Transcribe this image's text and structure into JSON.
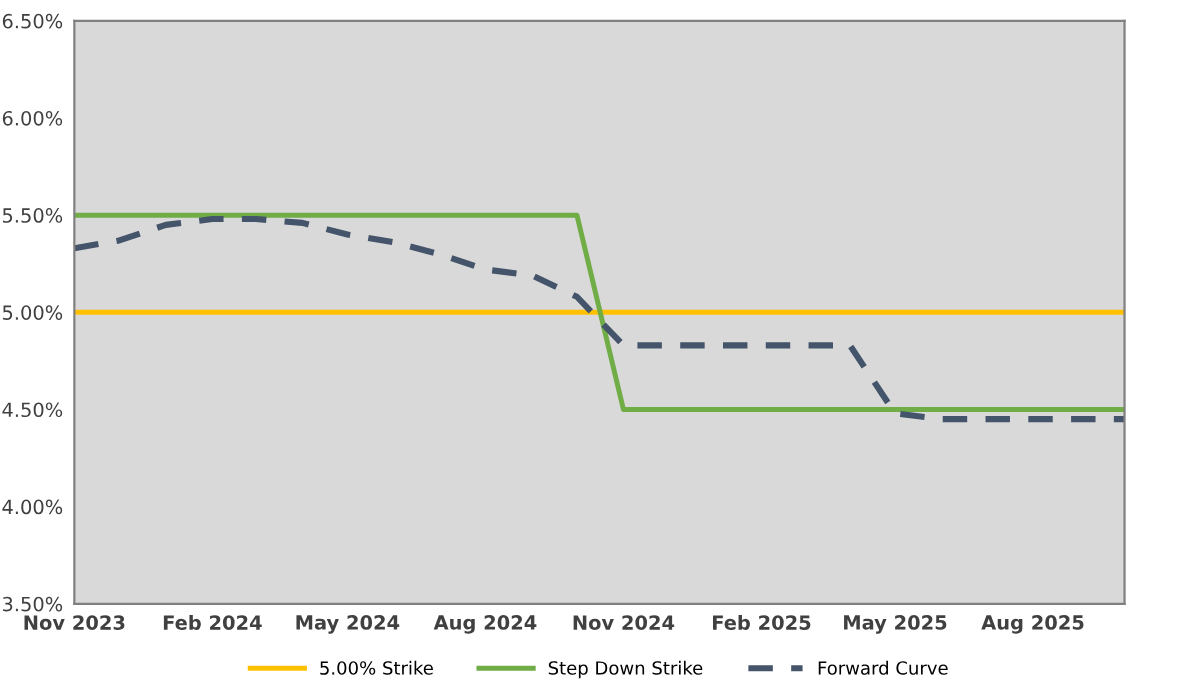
{
  "chart_data": {
    "type": "line",
    "series": [
      {
        "name": "5.00% Strike",
        "color": "#ffc000",
        "line_style": "solid",
        "x": [
          "2023-11",
          "2025-10"
        ],
        "values": [
          5.0,
          5.0
        ]
      },
      {
        "name": "Step Down Strike",
        "color": "#70ad47",
        "line_style": "solid",
        "x": [
          "2023-11",
          "2024-10",
          "2024-11",
          "2025-10"
        ],
        "values": [
          5.5,
          5.5,
          4.5,
          4.5
        ]
      },
      {
        "name": "Forward Curve",
        "color": "#44546a",
        "line_style": "dashed",
        "x": [
          "2023-11",
          "2023-12",
          "2024-01",
          "2024-02",
          "2024-03",
          "2024-04",
          "2024-05",
          "2024-06",
          "2024-07",
          "2024-08",
          "2024-09",
          "2024-10",
          "2024-11",
          "2025-04",
          "2025-05",
          "2025-06",
          "2025-10"
        ],
        "values": [
          5.33,
          5.37,
          5.45,
          5.48,
          5.48,
          5.46,
          5.4,
          5.36,
          5.3,
          5.22,
          5.19,
          5.08,
          4.83,
          4.83,
          4.48,
          4.45,
          4.45
        ]
      }
    ],
    "xlim": [
      "2023-11",
      "2025-10"
    ],
    "xticks": [
      {
        "value": "2023-11",
        "label": "Nov 2023"
      },
      {
        "value": "2024-02",
        "label": "Feb 2024"
      },
      {
        "value": "2024-05",
        "label": "May 2024"
      },
      {
        "value": "2024-08",
        "label": "Aug 2024"
      },
      {
        "value": "2024-11",
        "label": "Nov 2024"
      },
      {
        "value": "2025-02",
        "label": "Feb 2025"
      },
      {
        "value": "2025-05",
        "label": "May 2025"
      },
      {
        "value": "2025-08",
        "label": "Aug 2025"
      }
    ],
    "ylim": [
      3.5,
      6.5
    ],
    "yticks": [
      {
        "value": 3.5,
        "label": "3.50%"
      },
      {
        "value": 4.0,
        "label": "4.00%"
      },
      {
        "value": 4.5,
        "label": "4.50%"
      },
      {
        "value": 5.0,
        "label": "5.00%"
      },
      {
        "value": 5.5,
        "label": "5.50%"
      },
      {
        "value": 6.0,
        "label": "6.00%"
      },
      {
        "value": 6.5,
        "label": "6.50%"
      }
    ],
    "grid": false,
    "legend": "bottom",
    "marker": "none"
  }
}
